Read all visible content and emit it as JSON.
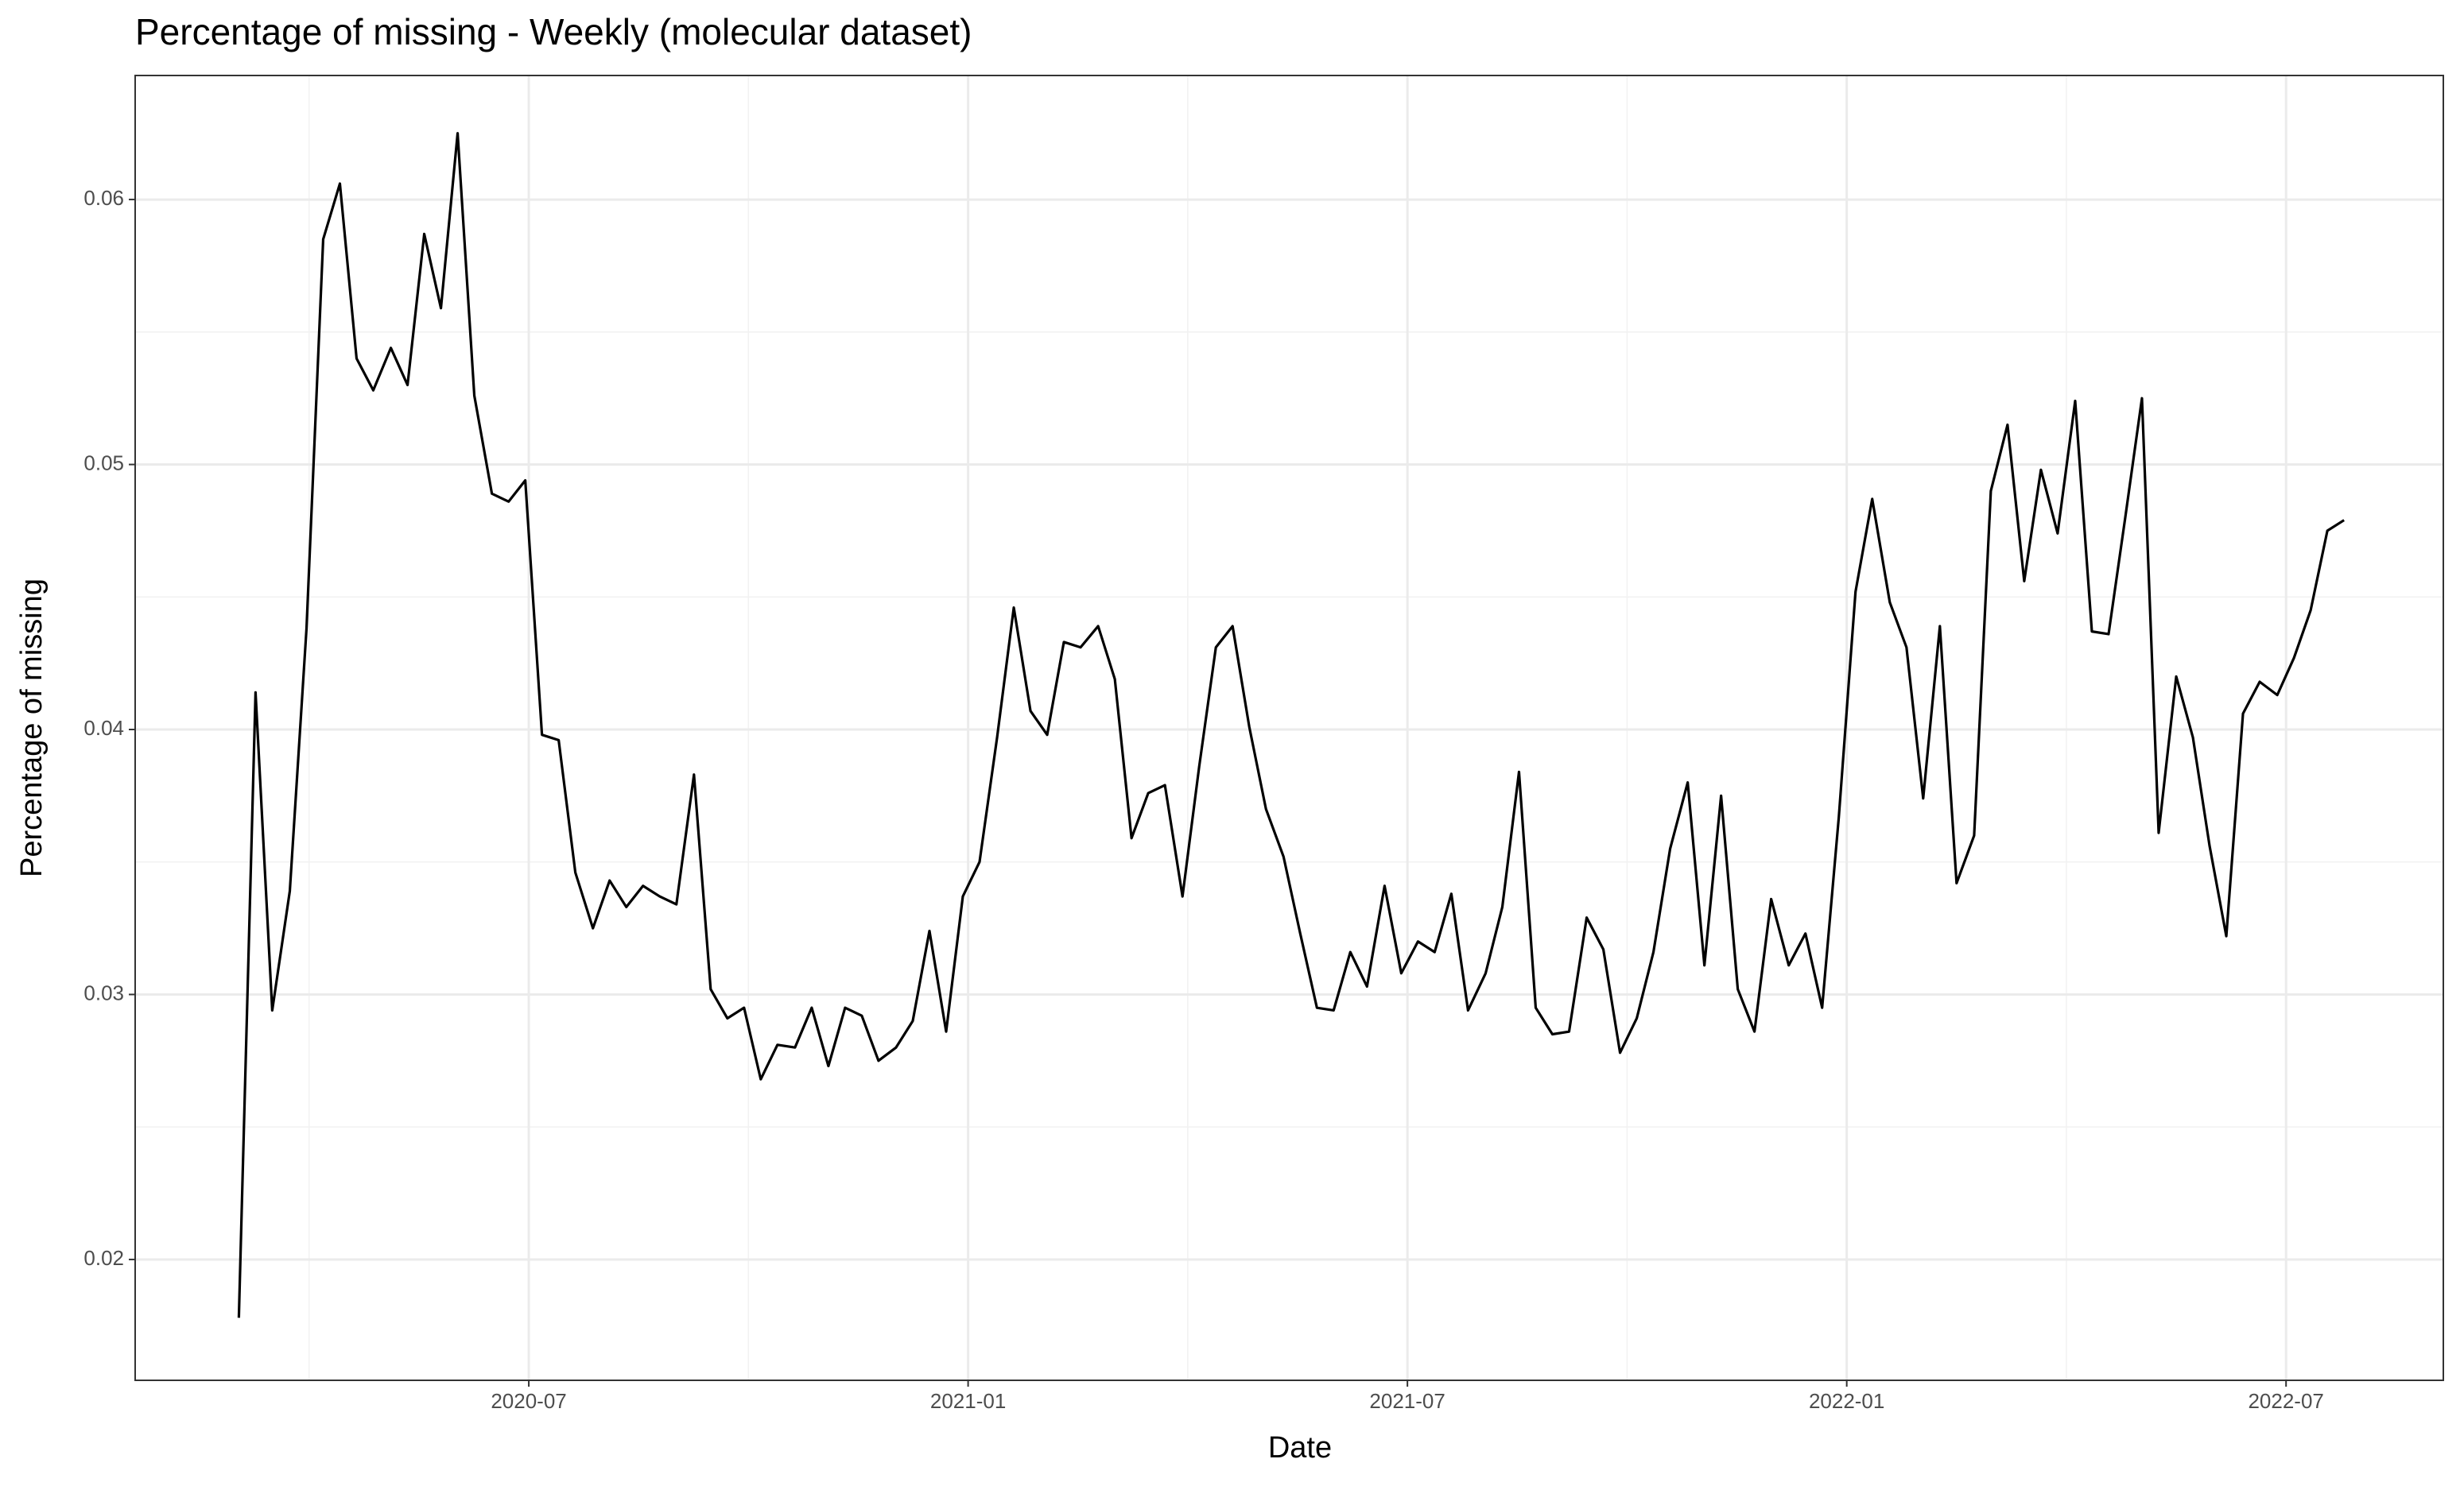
{
  "chart_data": {
    "type": "line",
    "title": "Percentage of missing - Weekly (molecular dataset)",
    "x_label": "Date",
    "y_label": "Percentage of missing",
    "x": [
      2020.17,
      2020.189,
      2020.208,
      2020.228,
      2020.247,
      2020.266,
      2020.285,
      2020.304,
      2020.323,
      2020.343,
      2020.362,
      2020.381,
      2020.4,
      2020.419,
      2020.438,
      2020.458,
      2020.477,
      2020.496,
      2020.515,
      2020.534,
      2020.553,
      2020.573,
      2020.592,
      2020.611,
      2020.63,
      2020.649,
      2020.668,
      2020.688,
      2020.707,
      2020.726,
      2020.745,
      2020.764,
      2020.783,
      2020.803,
      2020.822,
      2020.841,
      2020.86,
      2020.879,
      2020.898,
      2020.918,
      2020.937,
      2020.956,
      2020.975,
      2020.994,
      2021.013,
      2021.033,
      2021.052,
      2021.071,
      2021.09,
      2021.109,
      2021.128,
      2021.148,
      2021.167,
      2021.186,
      2021.205,
      2021.224,
      2021.244,
      2021.263,
      2021.282,
      2021.301,
      2021.32,
      2021.339,
      2021.359,
      2021.378,
      2021.397,
      2021.416,
      2021.435,
      2021.454,
      2021.474,
      2021.493,
      2021.512,
      2021.531,
      2021.55,
      2021.569,
      2021.589,
      2021.608,
      2021.627,
      2021.646,
      2021.665,
      2021.684,
      2021.704,
      2021.723,
      2021.742,
      2021.761,
      2021.78,
      2021.799,
      2021.819,
      2021.838,
      2021.857,
      2021.876,
      2021.895,
      2021.914,
      2021.934,
      2021.953,
      2021.972,
      2021.991,
      2022.01,
      2022.029,
      2022.049,
      2022.068,
      2022.087,
      2022.106,
      2022.125,
      2022.145,
      2022.164,
      2022.183,
      2022.202,
      2022.221,
      2022.24,
      2022.26,
      2022.279,
      2022.298,
      2022.317,
      2022.336,
      2022.355,
      2022.375,
      2022.394,
      2022.413,
      2022.432,
      2022.451,
      2022.47,
      2022.49,
      2022.509,
      2022.528,
      2022.547,
      2022.566
    ],
    "series": [
      {
        "color": "#000000",
        "values": [
          0.0178,
          0.0414,
          0.0294,
          0.0339,
          0.0438,
          0.0585,
          0.0606,
          0.054,
          0.0528,
          0.0544,
          0.053,
          0.0587,
          0.0559,
          0.0625,
          0.0526,
          0.0489,
          0.0486,
          0.0494,
          0.0398,
          0.0396,
          0.0346,
          0.0325,
          0.0343,
          0.0333,
          0.0341,
          0.0337,
          0.0334,
          0.0383,
          0.0302,
          0.0291,
          0.0295,
          0.0268,
          0.0281,
          0.028,
          0.0295,
          0.0273,
          0.0295,
          0.0292,
          0.0275,
          0.028,
          0.029,
          0.0324,
          0.0286,
          0.0337,
          0.035,
          0.0397,
          0.0446,
          0.0407,
          0.0398,
          0.0433,
          0.0431,
          0.0439,
          0.0419,
          0.0359,
          0.0376,
          0.0379,
          0.0337,
          0.0386,
          0.0431,
          0.0439,
          0.0401,
          0.037,
          0.0352,
          0.0323,
          0.0295,
          0.0294,
          0.0316,
          0.0303,
          0.0341,
          0.0308,
          0.032,
          0.0316,
          0.0338,
          0.0294,
          0.0308,
          0.0333,
          0.0384,
          0.0295,
          0.0285,
          0.0286,
          0.0329,
          0.0317,
          0.0278,
          0.0291,
          0.0316,
          0.0355,
          0.038,
          0.0311,
          0.0375,
          0.0302,
          0.0286,
          0.0336,
          0.0311,
          0.0323,
          0.0295,
          0.0367,
          0.0452,
          0.0487,
          0.0448,
          0.0431,
          0.0374,
          0.0439,
          0.0342,
          0.036,
          0.049,
          0.0515,
          0.0456,
          0.0498,
          0.0474,
          0.0524,
          0.0437,
          0.0436,
          0.048,
          0.0525,
          0.0361,
          0.042,
          0.0397,
          0.0356,
          0.0322,
          0.0406,
          0.0418,
          0.0413,
          0.0427,
          0.0445,
          0.0475,
          0.0479
        ]
      }
    ],
    "xlim": [
      2020.052,
      2022.679
    ],
    "xticks": [
      {
        "value": 2020.5,
        "label": "2020-07"
      },
      {
        "value": 2021.0,
        "label": "2021-01"
      },
      {
        "value": 2021.5,
        "label": "2021-07"
      },
      {
        "value": 2022.0,
        "label": "2022-01"
      },
      {
        "value": 2022.5,
        "label": "2022-07"
      }
    ],
    "ylim": [
      0.01544,
      0.06468
    ],
    "yticks": [
      0.02,
      0.03,
      0.04,
      0.05,
      0.06
    ],
    "grid": true
  }
}
